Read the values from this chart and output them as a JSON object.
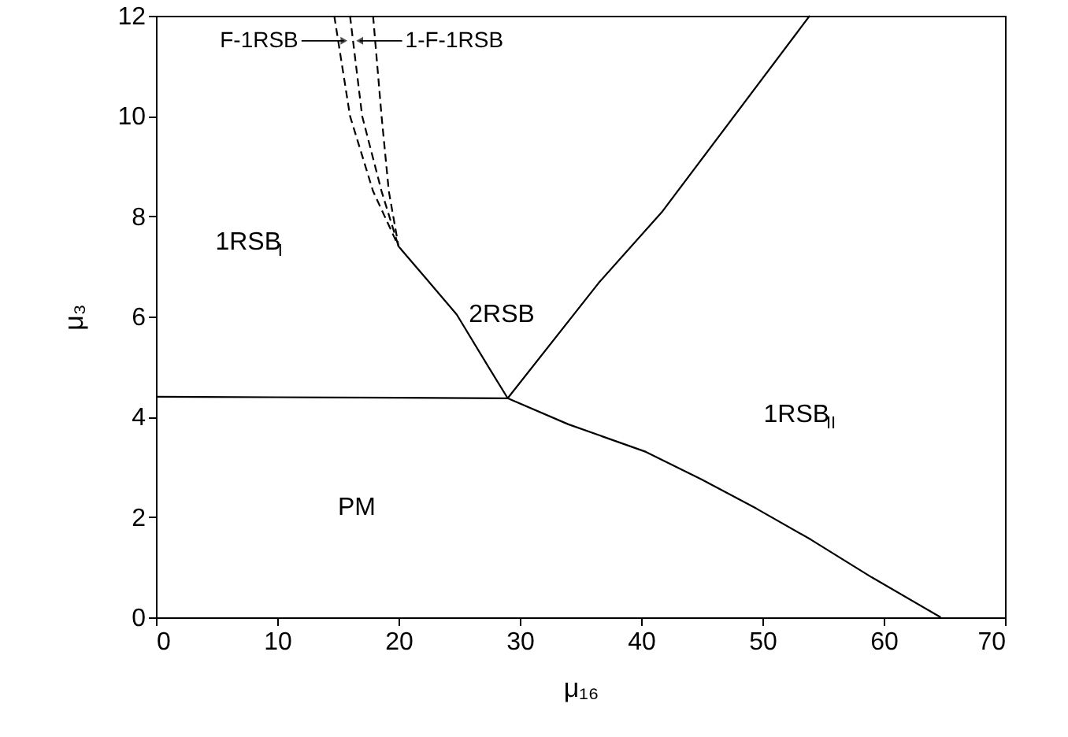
{
  "chart_data": {
    "type": "line",
    "xlabel": "μ₁₆",
    "ylabel": "μ₃",
    "xlim": [
      0,
      70
    ],
    "ylim": [
      0,
      12
    ],
    "xticks": [
      0,
      10,
      20,
      30,
      40,
      50,
      60,
      70
    ],
    "yticks": [
      0,
      2,
      4,
      6,
      8,
      10,
      12
    ],
    "grid": false,
    "marker": "none",
    "series": [
      {
        "color": "#000000",
        "line_style": "solid",
        "x": [
          0,
          10,
          20,
          29.0,
          34,
          40.4,
          45,
          49.5,
          54,
          59,
          64.7
        ],
        "values": [
          4.4,
          4.39,
          4.38,
          4.37,
          3.85,
          3.3,
          2.75,
          2.17,
          1.55,
          0.8,
          0
        ]
      },
      {
        "color": "#000000",
        "line_style": "solid",
        "x": [
          29.0,
          36.5,
          41.7,
          53.9
        ],
        "values": [
          4.37,
          6.67,
          8.08,
          12
        ]
      },
      {
        "color": "#000000",
        "line_style": "solid",
        "x": [
          29.0,
          27.4,
          24.8,
          22.3,
          20.0
        ],
        "values": [
          4.37,
          5.0,
          6.04,
          6.75,
          7.4
        ]
      },
      {
        "color": "#000000",
        "line_style": "dashed",
        "x": [
          20.0,
          17.9,
          16.0,
          14.7
        ],
        "values": [
          7.4,
          8.5,
          10,
          12
        ]
      },
      {
        "color": "#000000",
        "line_style": "dashed",
        "x": [
          20.0,
          18.6,
          17.0,
          16.0
        ],
        "values": [
          7.4,
          8.5,
          10,
          12
        ]
      },
      {
        "color": "#000000",
        "line_style": "dashed",
        "x": [
          20.0,
          19.2,
          18.6,
          17.9
        ],
        "values": [
          7.4,
          8.5,
          10,
          12
        ]
      }
    ],
    "annotations": [
      {
        "text": "F-1RSB",
        "x": 15.5,
        "y": 11.5
      },
      {
        "text": "1-F-1RSB",
        "x": 16.8,
        "y": 11.5
      },
      "1RSB$_{I}$",
      "2RSB",
      "1RSB$_{II}$",
      "PM"
    ]
  }
}
